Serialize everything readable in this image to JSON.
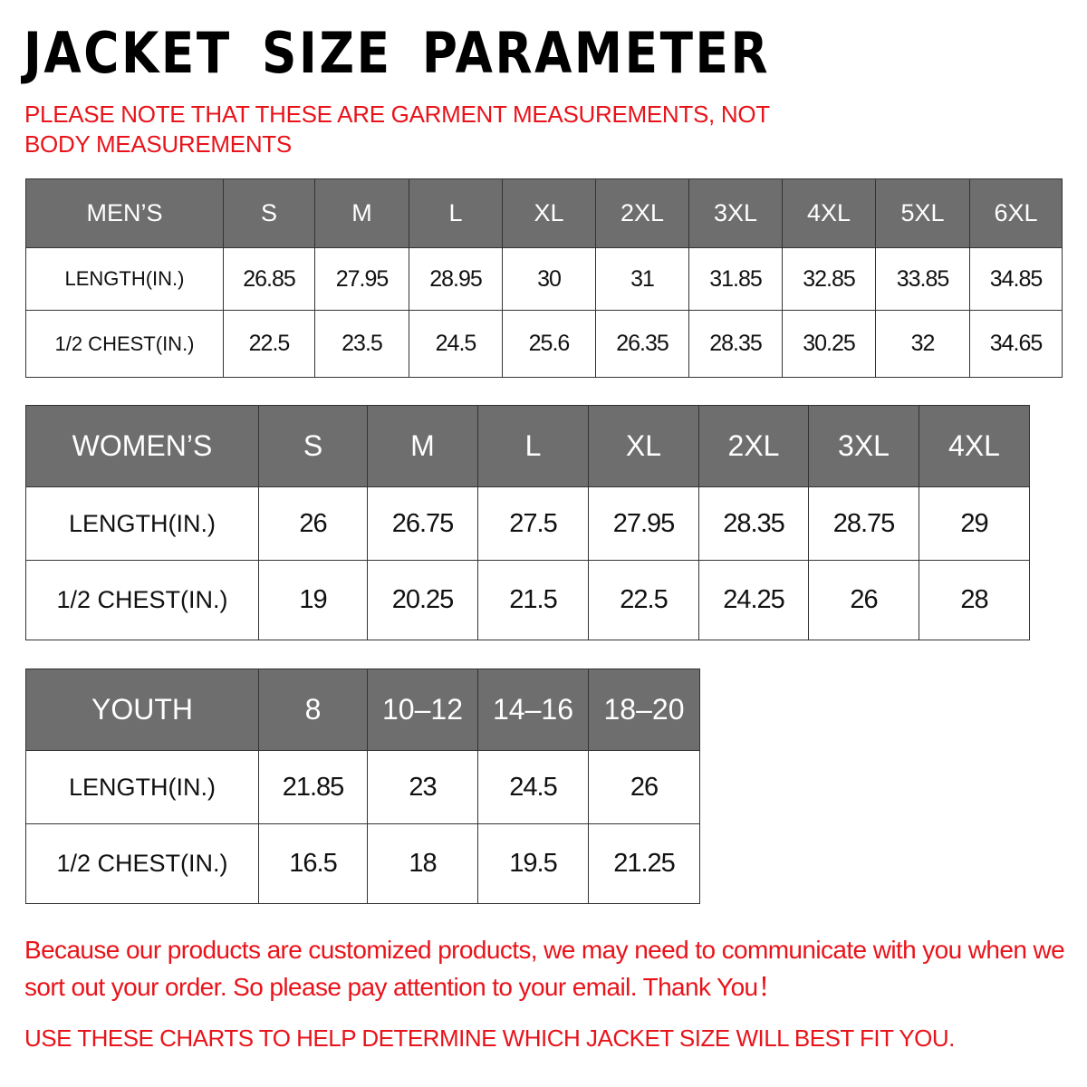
{
  "title": "JACKET SIZE PARAMETER",
  "note": "PLEASE NOTE THAT THESE ARE GARMENT MEASUREMENTS, NOT BODY MEASUREMENTS",
  "colors": {
    "accent_red": "#e8141b",
    "header_gray": "#6e6e6e"
  },
  "tables": {
    "men": {
      "headers": [
        "MEN’S",
        "S",
        "M",
        "L",
        "XL",
        "2XL",
        "3XL",
        "4XL",
        "5XL",
        "6XL"
      ],
      "rows": [
        [
          "LENGTH(IN.)",
          "26.85",
          "27.95",
          "28.95",
          "30",
          "31",
          "31.85",
          "32.85",
          "33.85",
          "34.85"
        ],
        [
          "1/2 CHEST(IN.)",
          "22.5",
          "23.5",
          "24.5",
          "25.6",
          "26.35",
          "28.35",
          "30.25",
          "32",
          "34.65"
        ]
      ]
    },
    "women": {
      "headers": [
        "WOMEN’S",
        "S",
        "M",
        "L",
        "XL",
        "2XL",
        "3XL",
        "4XL"
      ],
      "rows": [
        [
          "LENGTH(IN.)",
          "26",
          "26.75",
          "27.5",
          "27.95",
          "28.35",
          "28.75",
          "29"
        ],
        [
          "1/2 CHEST(IN.)",
          "19",
          "20.25",
          "21.5",
          "22.5",
          "24.25",
          "26",
          "28"
        ]
      ]
    },
    "youth": {
      "headers": [
        "YOUTH",
        "8",
        "10–12",
        "14–16",
        "18–20"
      ],
      "rows": [
        [
          "LENGTH(IN.)",
          "21.85",
          "23",
          "24.5",
          "26"
        ],
        [
          "1/2 CHEST(IN.)",
          "16.5",
          "18",
          "19.5",
          "21.25"
        ]
      ]
    }
  },
  "message": "Because our products are customized products, we may need to communicate with you when we sort out your order. So please pay attention to your email. Thank You！",
  "footer": "USE THESE CHARTS TO HELP DETERMINE WHICH JACKET SIZE WILL BEST FIT YOU."
}
